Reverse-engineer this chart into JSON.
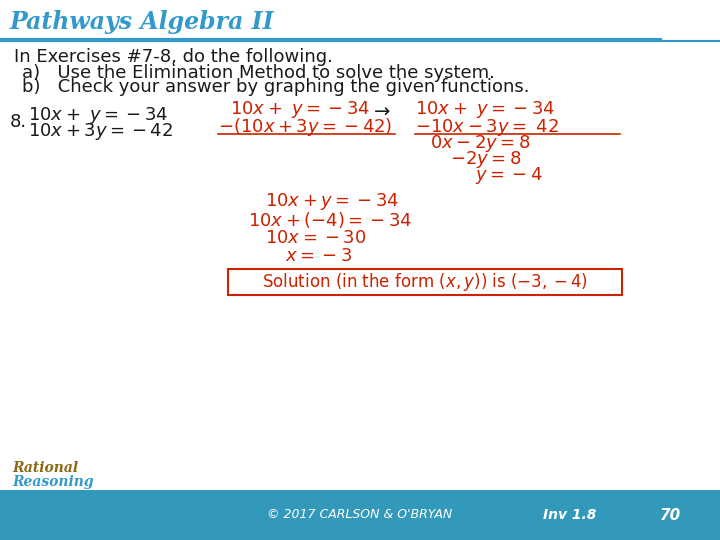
{
  "title": "Pathways Algebra II",
  "title_color": "#3399CC",
  "title_bg": "#FFFFFF",
  "title_border_color": "#3399CC",
  "header_line_color": "#3399CC",
  "body_bg": "#FFFFFF",
  "footer_bg": "#3399BB",
  "footer_text_color": "#FFFFFF",
  "footer_copyright": "© 2017 CARLSON & O'BRYAN",
  "footer_inv": "Inv 1.8",
  "footer_num": "70",
  "intro_text": "In Exercises #7-8, do the following.",
  "bullet_a": "a)   Use the Elimination Method to solve the system.",
  "bullet_b": "b)   Check your answer by graphing the given functions.",
  "problem_num": "8.",
  "black_color": "#1a1a1a",
  "red_color": "#CC2200",
  "solution_box_color": "#CC2200",
  "body_text_size": 13,
  "math_text_size": 14
}
